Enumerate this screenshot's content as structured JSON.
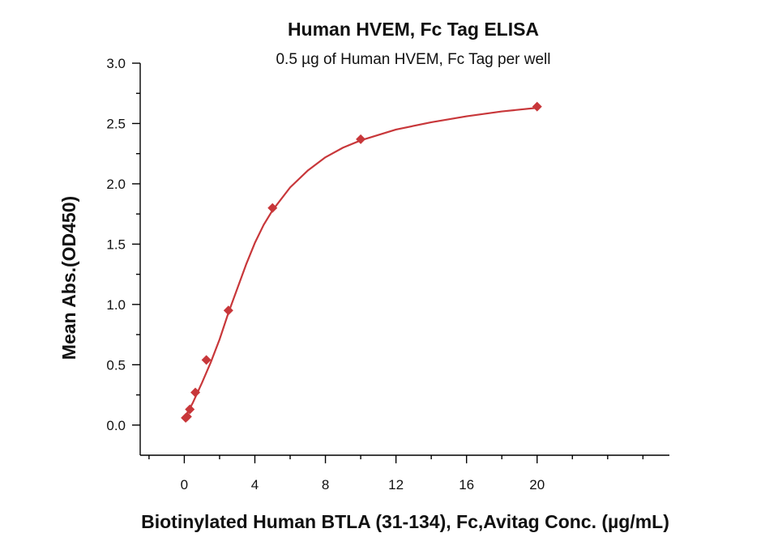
{
  "chart_data": {
    "type": "scatter",
    "title": "Human HVEM, Fc Tag ELISA",
    "subtitle": "0.5 µg of Human HVEM, Fc Tag per well",
    "xlabel": "Biotinylated Human BTLA (31-134), Fc,Avitag Conc. (µg/mL)",
    "ylabel": "Mean Abs.(OD450)",
    "xlim": [
      -2.5,
      27.5
    ],
    "ylim": [
      -0.25,
      3.0
    ],
    "xticks": [
      0,
      4,
      8,
      12,
      16,
      20
    ],
    "yticks": [
      0.0,
      0.5,
      1.0,
      1.5,
      2.0,
      2.5,
      3.0
    ],
    "ytick_labels": [
      "0.0",
      "0.5",
      "1.0",
      "1.5",
      "2.0",
      "2.5",
      "3.0"
    ],
    "grid": false,
    "legend": "none",
    "color": "#c8373a",
    "series": [
      {
        "marker": "diamond",
        "x": [
          0.078,
          0.156,
          0.313,
          0.625,
          1.25,
          2.5,
          5,
          10,
          20
        ],
        "y": [
          0.06,
          0.07,
          0.13,
          0.27,
          0.54,
          0.95,
          1.8,
          2.37,
          2.64
        ]
      }
    ],
    "fit_curve": {
      "x": [
        0,
        0.25,
        0.5,
        0.75,
        1,
        1.5,
        2,
        2.5,
        3,
        3.5,
        4,
        4.5,
        5,
        6,
        7,
        8,
        9,
        10,
        12,
        14,
        16,
        18,
        20
      ],
      "y": [
        0.06,
        0.12,
        0.19,
        0.27,
        0.35,
        0.52,
        0.71,
        0.93,
        1.13,
        1.33,
        1.51,
        1.66,
        1.78,
        1.97,
        2.11,
        2.22,
        2.3,
        2.36,
        2.45,
        2.51,
        2.56,
        2.6,
        2.63
      ]
    }
  }
}
